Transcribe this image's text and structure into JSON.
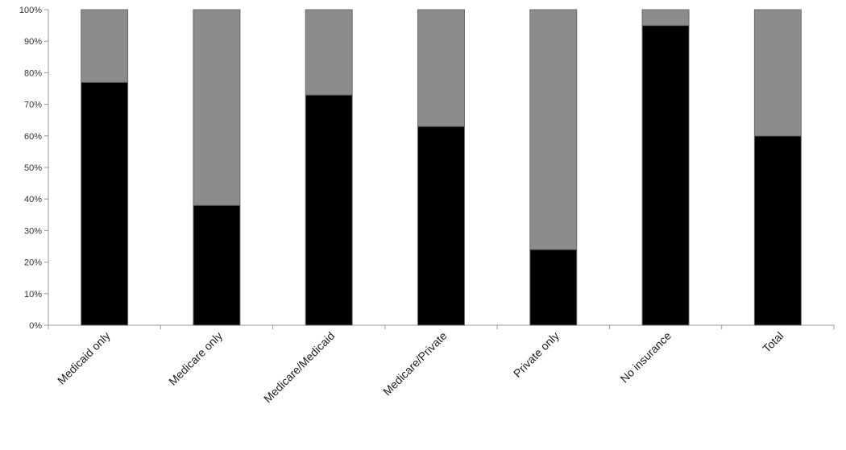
{
  "chart_data": {
    "type": "bar",
    "stacked": true,
    "categories": [
      "Medicaid only",
      "Medicare only",
      "Medicare/Medicaid",
      "Medicare/Private",
      "Private only",
      "No insurance",
      "Total"
    ],
    "series": [
      {
        "values": [
          77,
          38,
          73,
          63,
          24,
          95,
          60
        ],
        "color": "#000000"
      },
      {
        "values": [
          23,
          62,
          27,
          37,
          76,
          5,
          40
        ],
        "color": "#8c8c8c"
      }
    ],
    "ylim": [
      0,
      100
    ],
    "yticks": [
      "0%",
      "10%",
      "20%",
      "30%",
      "40%",
      "50%",
      "60%",
      "70%",
      "80%",
      "90%",
      "100%"
    ],
    "title": "",
    "xlabel": "",
    "ylabel": "",
    "grid": false,
    "legend": "none"
  }
}
